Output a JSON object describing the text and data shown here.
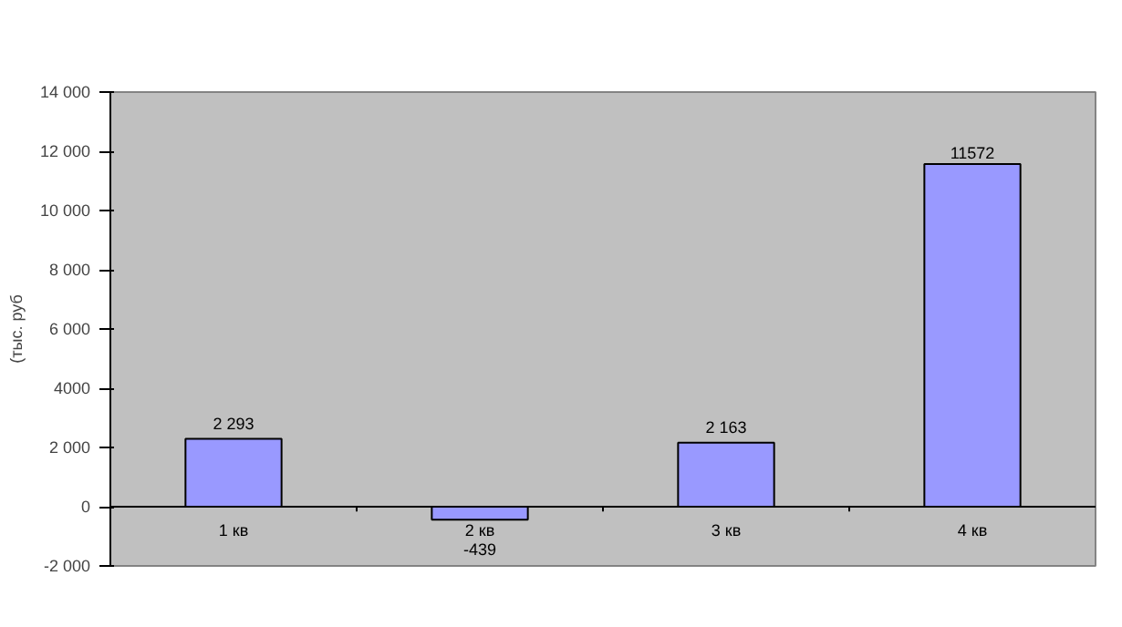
{
  "chart_data": {
    "type": "bar",
    "ylabel": "(тыс. руб",
    "categories": [
      "1 кв",
      "2 кв",
      "3 кв",
      "4 кв"
    ],
    "values": [
      2293,
      -439,
      2163,
      11572
    ],
    "color": "#9999ff",
    "value_labels": [
      "2 293",
      "-439",
      "2 163",
      "11572"
    ],
    "ylim": [
      -2000,
      14000
    ],
    "yticks": [
      {
        "value": -2000,
        "label": "-2 000"
      },
      0,
      {
        "value": 2000,
        "label": "2 000"
      },
      {
        "value": 4000,
        "label": "4000"
      },
      {
        "value": 6000,
        "label": "6 000"
      },
      {
        "value": 8000,
        "label": "8 000"
      },
      {
        "value": 10000,
        "label": "10 000"
      },
      {
        "value": 12000,
        "label": "12 000"
      },
      {
        "value": 14000,
        "label": "14 000"
      }
    ]
  }
}
